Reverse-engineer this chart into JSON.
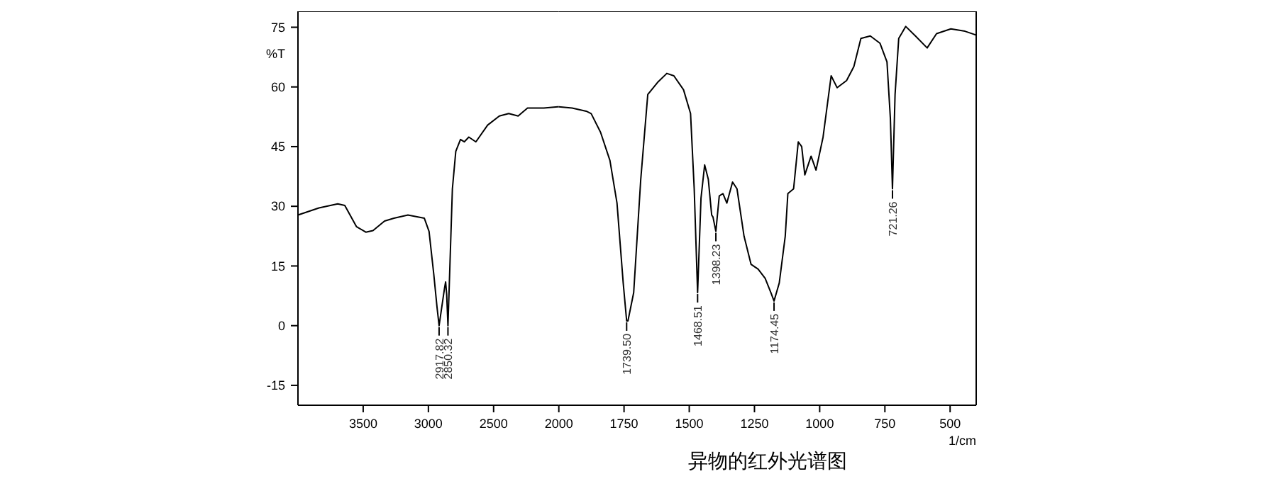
{
  "chart_data": [
    {
      "type": "line",
      "ylabel": "%T",
      "xlim": [
        4000,
        2000
      ],
      "xticks": [
        3500,
        3000,
        2500,
        2000
      ],
      "ylim": [
        -20,
        79
      ],
      "yticks": [
        75,
        60,
        45,
        30,
        15,
        0,
        -15
      ],
      "series": [
        {
          "color": "#000000",
          "x": [
            4000,
            3839,
            3695,
            3641,
            3552,
            3480,
            3425,
            3336,
            3264,
            3157,
            3031,
            2995,
            2959,
            2934,
            2918,
            2876,
            2868,
            2860,
            2850,
            2816,
            2790,
            2754,
            2725,
            2690,
            2636,
            2546,
            2456,
            2384,
            2312,
            2240,
            2115,
            2008,
            2000
          ],
          "values": [
            27.8,
            29.6,
            30.6,
            30.2,
            24.9,
            23.5,
            23.9,
            26.3,
            27,
            27.8,
            27,
            23.7,
            13,
            4.7,
            0,
            9.5,
            11,
            8,
            0,
            34.4,
            43.8,
            46.8,
            46.2,
            47.4,
            46.2,
            50.4,
            52.7,
            53.3,
            52.7,
            54.7,
            54.7,
            55,
            55
          ]
        }
      ],
      "annotations": [
        {
          "text": "2917.82",
          "x": 2918,
          "y": 0
        },
        {
          "text": "2850.32",
          "x": 2850,
          "y": 0
        }
      ]
    },
    {
      "type": "line",
      "title": "异物的红外光谱图",
      "xlabel": "1/cm",
      "tick_labels": "x",
      "xlim": [
        2000,
        400
      ],
      "xticks": [
        1750,
        1500,
        1250,
        1000,
        750,
        500
      ],
      "ylim": [
        -20,
        79
      ],
      "series": [
        {
          "color": "#000000",
          "x": [
            2000,
            1949,
            1895,
            1876,
            1840,
            1804,
            1777,
            1753,
            1740,
            1735,
            1713,
            1686,
            1659,
            1622,
            1586,
            1559,
            1522,
            1495,
            1481,
            1468,
            1455,
            1441,
            1427,
            1414,
            1409,
            1398,
            1385,
            1371,
            1356,
            1334,
            1317,
            1290,
            1263,
            1236,
            1209,
            1187,
            1175,
            1155,
            1132,
            1122,
            1100,
            1082,
            1069,
            1057,
            1033,
            1014,
            987,
            956,
            933,
            897,
            869,
            842,
            806,
            769,
            742,
            729,
            721,
            711,
            697,
            670,
            633,
            588,
            552,
            497,
            443,
            407,
            400
          ],
          "values": [
            55,
            54.7,
            53.9,
            53.3,
            48.6,
            41.5,
            30.8,
            10.6,
            1.2,
            1.2,
            8.3,
            36.7,
            58.1,
            61.1,
            63.4,
            62.8,
            59.3,
            53.3,
            34.4,
            8.3,
            32,
            40.4,
            36.8,
            27.8,
            27.3,
            23.7,
            32.6,
            33.2,
            30.8,
            36.1,
            34.4,
            22.5,
            15.4,
            14.2,
            11.9,
            8.3,
            6.2,
            10.7,
            22.5,
            33.2,
            34.4,
            46.2,
            45,
            37.9,
            42.6,
            39.1,
            47.4,
            62.8,
            59.8,
            61.6,
            65.1,
            72.2,
            72.8,
            71,
            66.3,
            52.1,
            34.4,
            58.1,
            72.2,
            75.2,
            72.8,
            69.8,
            73.4,
            74.6,
            74,
            73.2,
            73
          ]
        }
      ],
      "annotations": [
        {
          "text": "1739.50",
          "x": 1740,
          "y": 1.2
        },
        {
          "text": "1468.51",
          "x": 1468,
          "y": 8.3
        },
        {
          "text": "1398.23",
          "x": 1398,
          "y": 23.7
        },
        {
          "text": "1174.45",
          "x": 1175,
          "y": 6.2
        },
        {
          "text": "721.26",
          "x": 721,
          "y": 34.4
        }
      ]
    }
  ]
}
